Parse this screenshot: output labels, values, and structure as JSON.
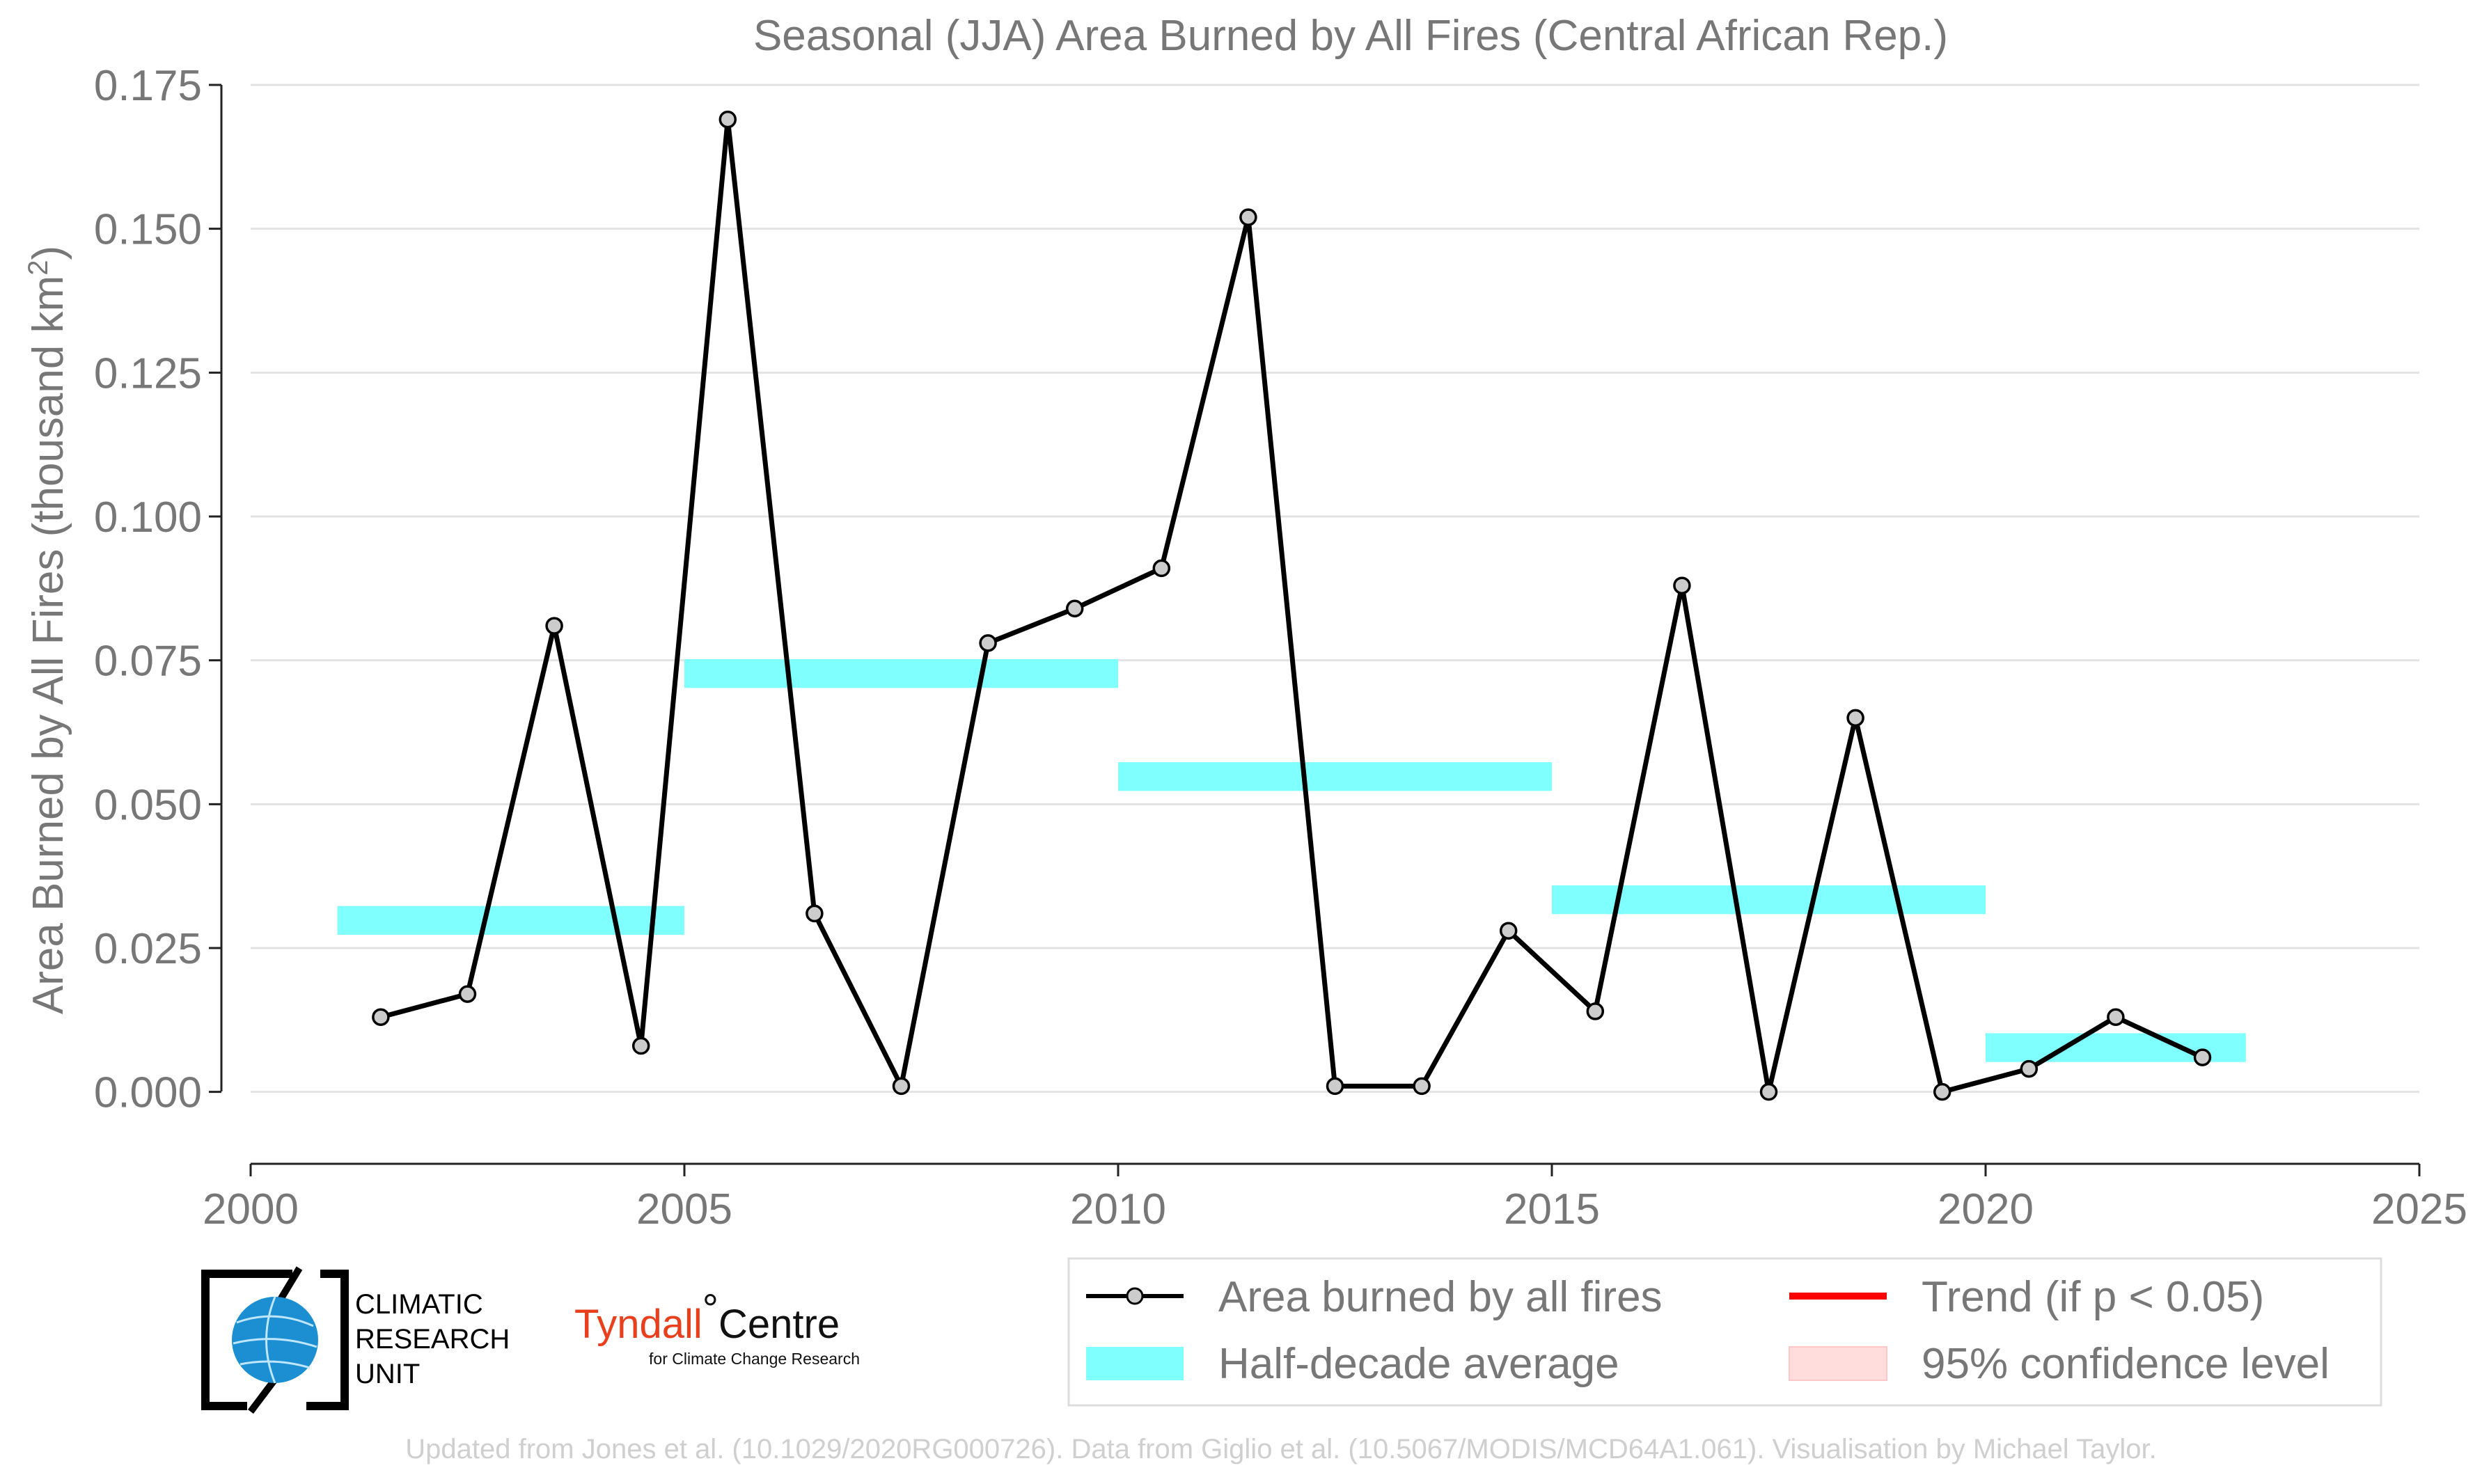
{
  "chart_data": {
    "type": "line",
    "title": "Seasonal (JJA) Area Burned by All Fires (Central African Rep.)",
    "ylabel_main": "Area Burned by All Fires (thousand km",
    "ylabel_sup": "2",
    "ylabel_close": ")",
    "xlim": [
      2000,
      2025
    ],
    "ylim": [
      -0.0125,
      0.175
    ],
    "x_ticks": [
      2000,
      2005,
      2010,
      2015,
      2020,
      2025
    ],
    "x_tick_labels": [
      "2000",
      "2005",
      "2010",
      "2015",
      "2020",
      "2025"
    ],
    "y_ticks": [
      0,
      0.025,
      0.05,
      0.075,
      0.1,
      0.125,
      0.15,
      0.175
    ],
    "y_tick_labels": [
      "0.000",
      "0.025",
      "0.050",
      "0.075",
      "0.100",
      "0.125",
      "0.150",
      "0.175"
    ],
    "grid": "horizontal",
    "series": [
      {
        "name": "Area burned by all fires",
        "x": [
          2001.5,
          2002.5,
          2003.5,
          2004.5,
          2005.5,
          2006.5,
          2007.5,
          2008.5,
          2009.5,
          2010.5,
          2011.5,
          2012.5,
          2013.5,
          2014.5,
          2015.5,
          2016.5,
          2017.5,
          2018.5,
          2019.5,
          2020.5,
          2021.5,
          2022.5
        ],
        "y": [
          0.013,
          0.017,
          0.081,
          0.008,
          0.169,
          0.031,
          0.001,
          0.078,
          0.084,
          0.091,
          0.152,
          0.001,
          0.001,
          0.028,
          0.014,
          0.088,
          0.0,
          0.065,
          0.0,
          0.004,
          0.013,
          0.006
        ],
        "color": "#000000",
        "marker_fill": "#cccccc"
      }
    ],
    "half_decade_average": {
      "name": "Half-decade average",
      "color": "#80ffff",
      "segments": [
        {
          "x0": 2001,
          "x1": 2005,
          "y": 0.0298
        },
        {
          "x0": 2005,
          "x1": 2010,
          "y": 0.0727
        },
        {
          "x0": 2010,
          "x1": 2015,
          "y": 0.0548
        },
        {
          "x0": 2015,
          "x1": 2020,
          "y": 0.0334
        },
        {
          "x0": 2020,
          "x1": 2023,
          "y": 0.0077
        }
      ]
    },
    "legend": {
      "position": "bottom-right",
      "items": [
        {
          "label": "Area burned by all fires",
          "kind": "line-marker",
          "color": "#000000"
        },
        {
          "label": "Trend (if p < 0.05)",
          "kind": "line",
          "color": "#ff0000"
        },
        {
          "label": "Half-decade average",
          "kind": "band",
          "color": "#80ffff"
        },
        {
          "label": "95% confidence level",
          "kind": "fill",
          "color": "#ffdddd"
        }
      ]
    }
  },
  "logos": {
    "cru_line1": "CLIMATIC",
    "cru_line2": "RESEARCH",
    "cru_line3": "UNIT",
    "tyndall_a": "Tyndall",
    "tyndall_deg": "°",
    "tyndall_b": "Centre",
    "tyndall_sub": "for Climate Change Research"
  },
  "footer": "Updated from Jones et al. (10.1029/2020RG000726). Data from Giglio et al. (10.5067/MODIS/MCD64A1.061). Visualisation by Michael Taylor."
}
